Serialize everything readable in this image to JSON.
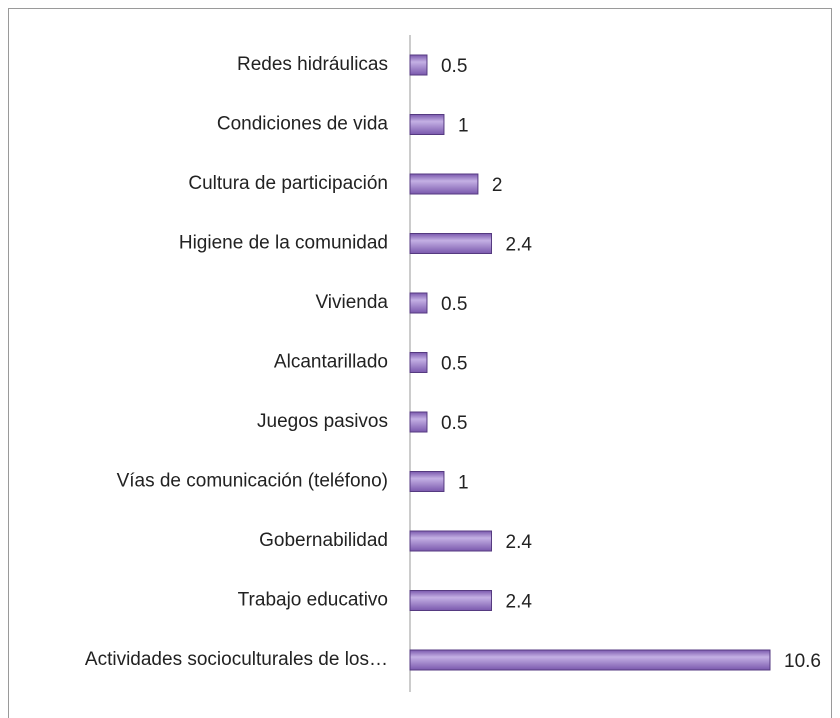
{
  "chart_data": {
    "type": "bar",
    "orientation": "horizontal",
    "categories": [
      "Redes hidráulicas",
      "Condiciones de vida",
      "Cultura de participación",
      "Higiene de la comunidad",
      "Vivienda",
      "Alcantarillado",
      "Juegos pasivos",
      "Vías de comunicación (teléfono)",
      "Gobernabilidad",
      "Trabajo educativo",
      "Actividades socioculturales de los…"
    ],
    "values": [
      0.5,
      1,
      2,
      2.4,
      0.5,
      0.5,
      0.5,
      1,
      2.4,
      2.4,
      10.6
    ],
    "color": "#7a58ad"
  }
}
